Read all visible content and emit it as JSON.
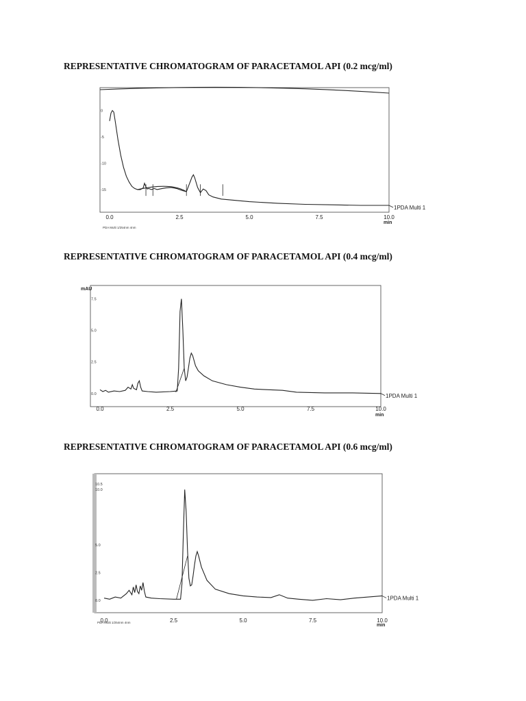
{
  "headings": [
    "REPRESENTATIVE CHROMATOGRAM OF PARACETAMOL API (0.2 mcg/ml)",
    "REPRESENTATIVE CHROMATOGRAM OF PARACETAMOL API (0.4 mcg/ml)",
    "REPRESENTATIVE CHROMATOGRAM OF PARACETAMOL API (0.6 mcg/ml)"
  ],
  "chart_data": [
    {
      "type": "line",
      "title": "REPRESENTATIVE CHROMATOGRAM OF PARACETAMOL API (0.2 mcg/ml)",
      "xlabel": "min",
      "ylabel": "",
      "xlim": [
        0.0,
        10.0
      ],
      "ylim": [
        -18,
        2
      ],
      "x_ticks": [
        "0.0",
        "2.5",
        "5.0",
        "7.5",
        "10.0"
      ],
      "y_ticks": [
        "0",
        "-5",
        "-10",
        "-15"
      ],
      "footnote": "PDA Multi 1/254nm 4nm",
      "series": [
        {
          "name": "1PDA Multi 1",
          "x": [
            0.0,
            0.05,
            0.1,
            0.15,
            0.2,
            0.3,
            0.4,
            0.5,
            0.6,
            0.7,
            0.8,
            0.9,
            1.0,
            1.1,
            1.2,
            1.25,
            1.3,
            1.35,
            1.4,
            1.5,
            1.6,
            1.7,
            1.8,
            2.0,
            2.2,
            2.4,
            2.6,
            2.75,
            2.85,
            2.95,
            3.0,
            3.05,
            3.15,
            3.25,
            3.35,
            3.45,
            3.55,
            3.7,
            4.0,
            5.0,
            6.0,
            7.0,
            8.0,
            9.0,
            10.0
          ],
          "y": [
            -2.0,
            -0.5,
            0.0,
            -0.3,
            -2.0,
            -5.5,
            -8.5,
            -10.8,
            -12.5,
            -13.6,
            -14.4,
            -14.8,
            -15.0,
            -15.0,
            -14.7,
            -13.8,
            -14.5,
            -14.9,
            -14.8,
            -15.0,
            -14.8,
            -15.0,
            -14.9,
            -14.7,
            -14.6,
            -14.8,
            -15.2,
            -15.4,
            -14.0,
            -12.6,
            -12.2,
            -12.8,
            -14.6,
            -15.6,
            -14.9,
            -15.2,
            -16.0,
            -16.4,
            -16.8,
            -17.3,
            -17.6,
            -17.8,
            -17.9,
            -18.0,
            -18.0
          ]
        }
      ]
    },
    {
      "type": "line",
      "title": "REPRESENTATIVE CHROMATOGRAM OF PARACETAMOL API (0.4 mcg/ml)",
      "xlabel": "min",
      "ylabel": "mAU",
      "xlim": [
        0.0,
        10.0
      ],
      "ylim": [
        -0.5,
        7.8
      ],
      "x_ticks": [
        "0.0",
        "2.5",
        "5.0",
        "7.5",
        "10.0"
      ],
      "y_ticks": [
        "7.5",
        "5.0",
        "2.5",
        "0.0"
      ],
      "series": [
        {
          "name": "1PDA Multi 1",
          "x": [
            0.0,
            0.1,
            0.2,
            0.3,
            0.5,
            0.7,
            0.9,
            1.0,
            1.1,
            1.15,
            1.2,
            1.3,
            1.35,
            1.4,
            1.45,
            1.5,
            1.7,
            2.0,
            2.5,
            2.75,
            2.8,
            2.85,
            2.9,
            2.95,
            3.0,
            3.05,
            3.1,
            3.15,
            3.2,
            3.25,
            3.3,
            3.35,
            3.4,
            3.5,
            3.7,
            4.0,
            4.5,
            5.0,
            5.5,
            6.0,
            6.5,
            7.0,
            8.0,
            9.0,
            10.0
          ],
          "y": [
            0.3,
            0.15,
            0.25,
            0.1,
            0.2,
            0.15,
            0.25,
            0.5,
            0.35,
            0.7,
            0.4,
            0.3,
            0.8,
            1.0,
            0.5,
            0.2,
            0.15,
            0.1,
            0.15,
            0.2,
            2.0,
            6.5,
            7.5,
            5.0,
            2.0,
            1.0,
            1.3,
            2.0,
            2.8,
            3.2,
            3.0,
            2.6,
            2.2,
            1.8,
            1.4,
            1.0,
            0.7,
            0.5,
            0.35,
            0.3,
            0.25,
            0.1,
            0.05,
            0.05,
            0.0
          ]
        }
      ]
    },
    {
      "type": "line",
      "title": "REPRESENTATIVE CHROMATOGRAM OF PARACETAMOL API (0.6 mcg/ml)",
      "xlabel": "min",
      "ylabel": "",
      "xlim": [
        0.0,
        10.0
      ],
      "ylim": [
        -0.5,
        10.5
      ],
      "x_ticks": [
        "0.0",
        "2.5",
        "5.0",
        "7.5",
        "10.0"
      ],
      "y_ticks": [
        "10.5",
        "10.0",
        "5.0",
        "2.5",
        "0.0"
      ],
      "footnote": "PDA Multi 1/254nm 4nm",
      "series": [
        {
          "name": "1PDA Multi 1",
          "x": [
            0.0,
            0.2,
            0.4,
            0.6,
            0.8,
            0.9,
            1.0,
            1.05,
            1.1,
            1.15,
            1.2,
            1.25,
            1.3,
            1.35,
            1.4,
            1.45,
            1.5,
            1.7,
            2.0,
            2.5,
            2.75,
            2.8,
            2.85,
            2.9,
            2.95,
            3.0,
            3.05,
            3.1,
            3.15,
            3.2,
            3.25,
            3.3,
            3.35,
            3.4,
            3.5,
            3.7,
            4.0,
            4.5,
            5.0,
            5.5,
            6.0,
            6.3,
            6.6,
            7.0,
            7.5,
            8.0,
            8.5,
            9.0,
            9.5,
            10.0
          ],
          "y": [
            0.2,
            0.1,
            0.3,
            0.2,
            0.6,
            0.9,
            0.5,
            1.2,
            0.7,
            1.4,
            0.8,
            0.6,
            1.3,
            0.9,
            1.6,
            0.8,
            0.3,
            0.2,
            0.15,
            0.1,
            0.1,
            1.5,
            6.0,
            10.0,
            8.0,
            4.5,
            2.0,
            1.3,
            1.4,
            2.2,
            3.2,
            4.0,
            4.4,
            4.0,
            3.0,
            1.8,
            1.0,
            0.6,
            0.4,
            0.3,
            0.25,
            0.5,
            0.2,
            0.1,
            0.0,
            0.15,
            0.05,
            0.2,
            0.3,
            0.4
          ]
        }
      ]
    }
  ]
}
